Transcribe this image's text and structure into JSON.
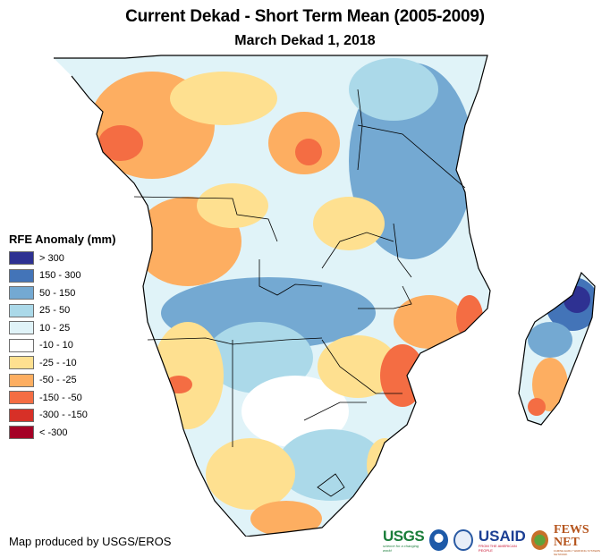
{
  "header": {
    "title": "Current Dekad - Short Term Mean (2005-2009)",
    "subtitle": "March Dekad 1, 2018"
  },
  "legend": {
    "title": "RFE Anomaly (mm)",
    "items": [
      {
        "label": "> 300",
        "color": "#2e3192"
      },
      {
        "label": "150 - 300",
        "color": "#4374b8"
      },
      {
        "label": "50 - 150",
        "color": "#74a9d2"
      },
      {
        "label": "25 - 50",
        "color": "#abd9e9"
      },
      {
        "label": "10 - 25",
        "color": "#e0f3f8"
      },
      {
        "label": "-10 - 10",
        "color": "#ffffff"
      },
      {
        "label": "-25 - -10",
        "color": "#fee090"
      },
      {
        "label": "-50 - -25",
        "color": "#fdae61"
      },
      {
        "label": "-150 - -50",
        "color": "#f46d43"
      },
      {
        "label": "-300 - -150",
        "color": "#d73027"
      },
      {
        "label": "< -300",
        "color": "#a50026"
      }
    ]
  },
  "footer": {
    "credit": "Map produced by USGS/EROS",
    "logos": {
      "usgs": "USGS",
      "usgs_tagline": "science for a changing world",
      "usaid": "USAID",
      "usaid_tagline": "FROM THE AMERICAN PEOPLE",
      "fews": "FEWS NET",
      "fews_tagline": "FAMINE EARLY WARNING SYSTEMS NETWORK"
    }
  },
  "map": {
    "region": "Southern and Eastern Africa",
    "variable": "Rainfall estimate anomaly",
    "units": "mm"
  }
}
